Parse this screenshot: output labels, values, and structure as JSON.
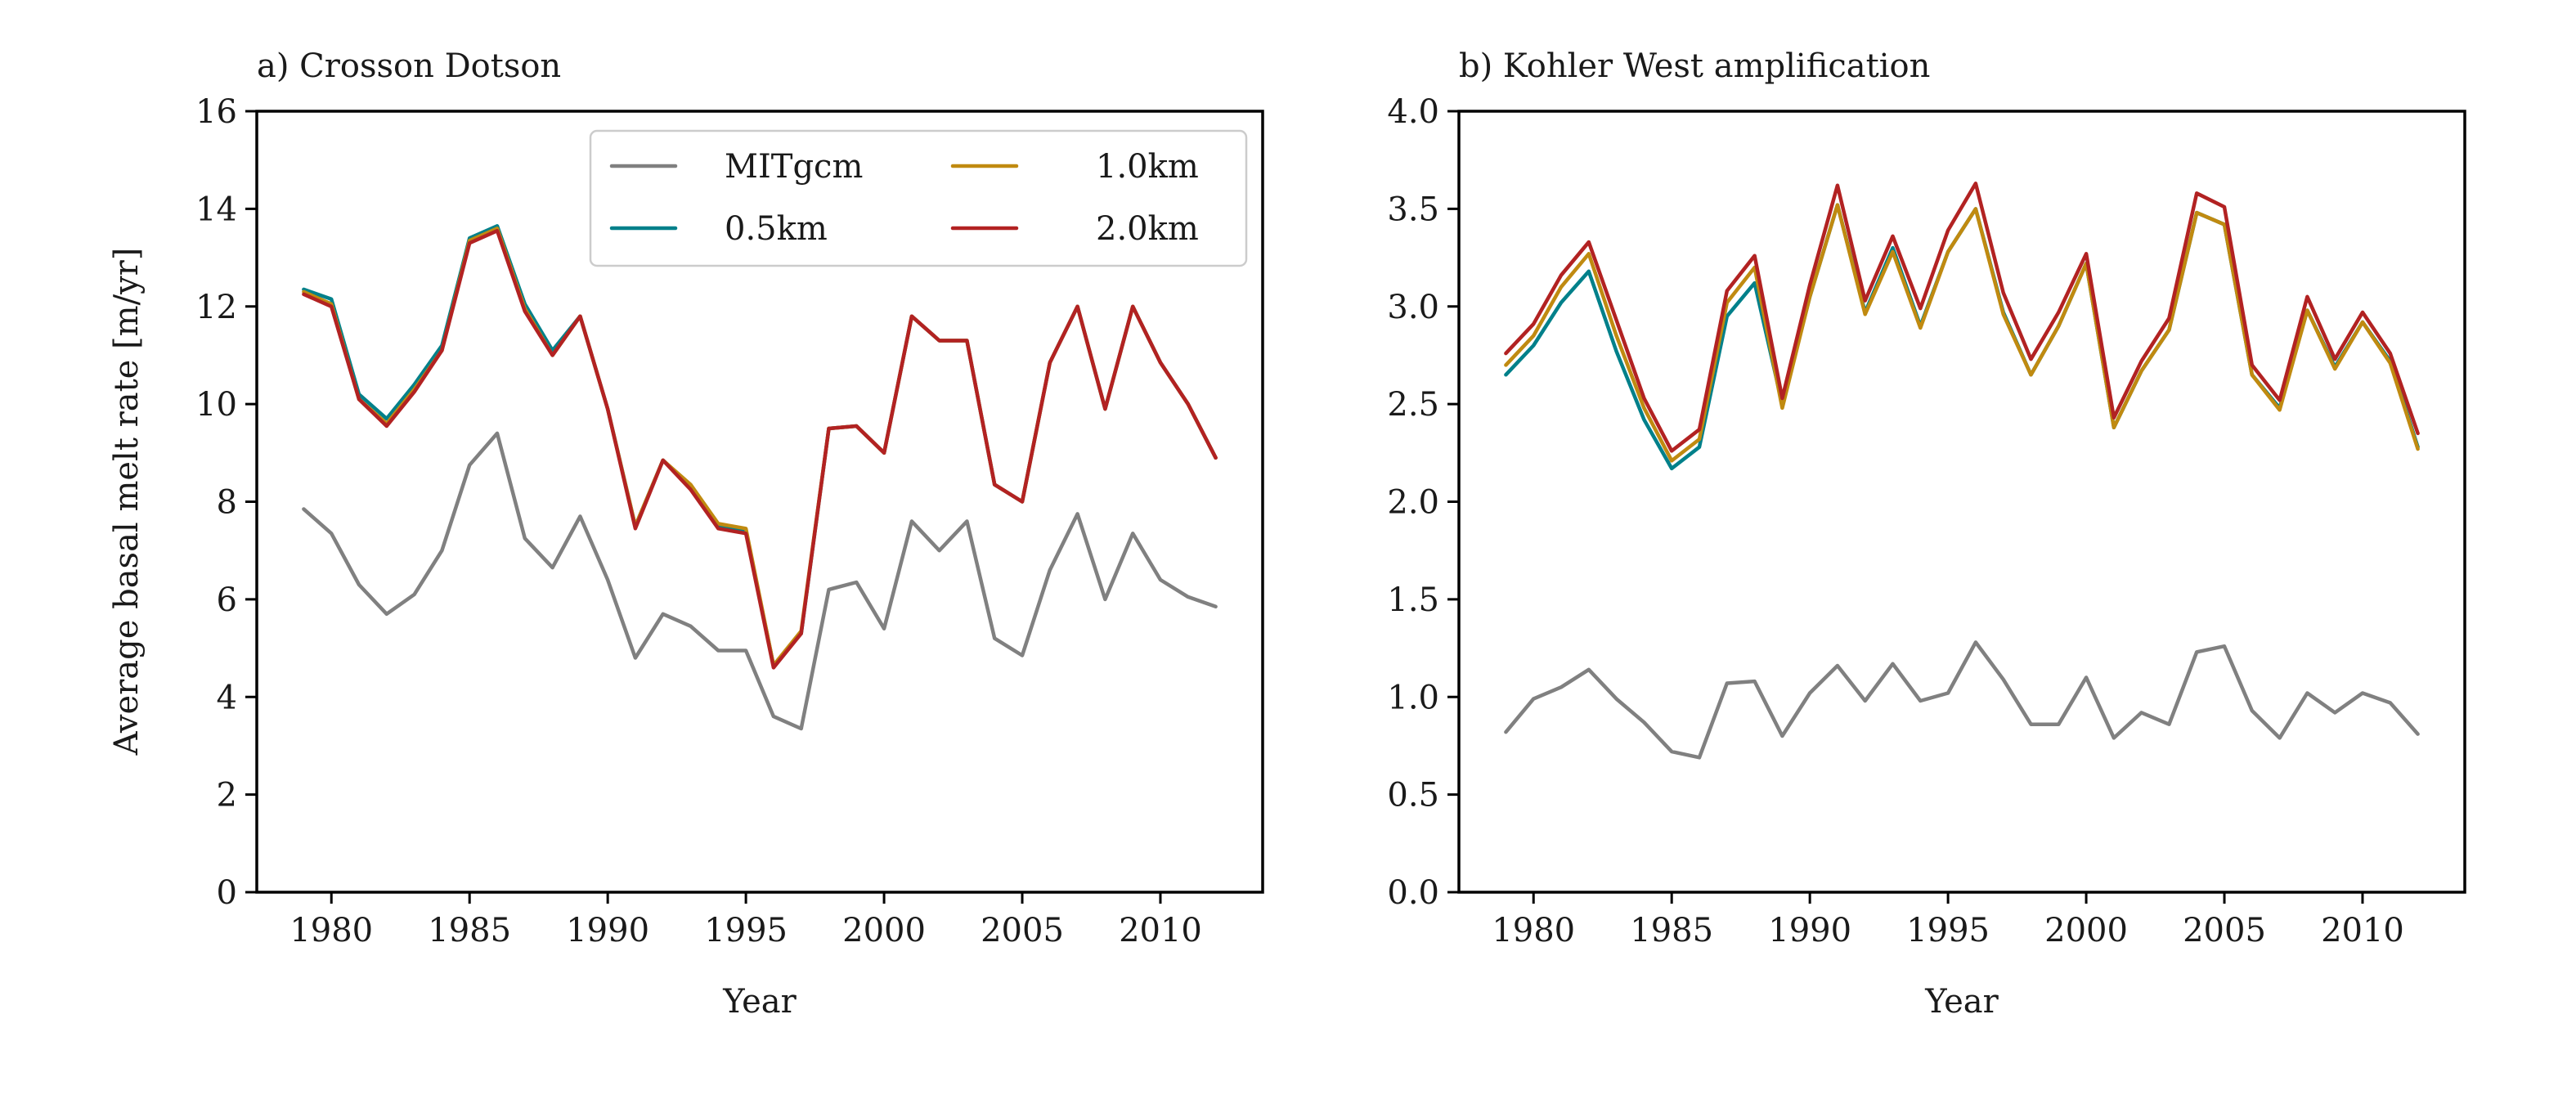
{
  "figure": {
    "ylabel": "Average basal melt rate [m/yr]"
  },
  "legend": {
    "entries": [
      {
        "name": "MITgcm",
        "color": "#808080"
      },
      {
        "name": "0.5km",
        "color": "#00808a"
      },
      {
        "name": "1.0km",
        "color": "#c08a10"
      },
      {
        "name": "2.0km",
        "color": "#b22222"
      }
    ]
  },
  "chart_data": [
    {
      "type": "line",
      "title": "a) Crosson Dotson",
      "xlabel": "Year",
      "ylabel": "Average basal melt rate [m/yr]",
      "xlim": [
        1977.3,
        2013.7
      ],
      "ylim": [
        0,
        16
      ],
      "xticks": [
        1980,
        1985,
        1990,
        1995,
        2000,
        2005,
        2010
      ],
      "yticks": [
        0,
        2,
        4,
        6,
        8,
        10,
        12,
        14,
        16
      ],
      "ytick_labels": [
        "0",
        "2",
        "4",
        "6",
        "8",
        "10",
        "12",
        "14",
        "16"
      ],
      "legend_position": "upper right",
      "x": [
        1979,
        1980,
        1981,
        1982,
        1983,
        1984,
        1985,
        1986,
        1987,
        1988,
        1989,
        1990,
        1991,
        1992,
        1993,
        1994,
        1995,
        1996,
        1997,
        1998,
        1999,
        2000,
        2001,
        2002,
        2003,
        2004,
        2005,
        2006,
        2007,
        2008,
        2009,
        2010,
        2011,
        2012
      ],
      "series": [
        {
          "name": "MITgcm",
          "color": "#808080",
          "values": [
            7.85,
            7.35,
            6.3,
            5.7,
            6.1,
            7.0,
            8.75,
            9.4,
            7.25,
            6.65,
            7.7,
            6.4,
            4.8,
            5.7,
            5.45,
            4.95,
            4.95,
            3.6,
            3.35,
            6.2,
            6.35,
            5.4,
            7.6,
            7.0,
            7.6,
            5.2,
            4.85,
            6.6,
            7.75,
            6.0,
            7.35,
            6.4,
            6.05,
            5.85
          ]
        },
        {
          "name": "0.5km",
          "color": "#00808a",
          "values": [
            12.35,
            12.15,
            10.2,
            9.7,
            10.4,
            11.2,
            13.4,
            13.65,
            12.05,
            11.1,
            11.8,
            9.9,
            7.5,
            8.85,
            8.3,
            7.5,
            7.4,
            4.65,
            5.3,
            9.5,
            9.55,
            9.0,
            11.8,
            11.3,
            11.3,
            8.35,
            8.0,
            10.85,
            12.0,
            9.9,
            12.0,
            10.85,
            10.0,
            8.9
          ]
        },
        {
          "name": "1.0km",
          "color": "#c08a10",
          "values": [
            12.3,
            12.05,
            10.1,
            9.6,
            10.3,
            11.1,
            13.35,
            13.6,
            11.95,
            11.0,
            11.8,
            9.9,
            7.5,
            8.85,
            8.35,
            7.55,
            7.45,
            4.65,
            5.35,
            9.5,
            9.55,
            9.0,
            11.8,
            11.3,
            11.3,
            8.35,
            8.0,
            10.85,
            12.0,
            9.9,
            12.0,
            10.85,
            10.0,
            8.9
          ]
        },
        {
          "name": "2.0km",
          "color": "#b22222",
          "values": [
            12.25,
            12.0,
            10.1,
            9.55,
            10.25,
            11.1,
            13.3,
            13.55,
            11.9,
            11.0,
            11.8,
            9.9,
            7.45,
            8.85,
            8.25,
            7.45,
            7.35,
            4.6,
            5.3,
            9.5,
            9.55,
            9.0,
            11.8,
            11.3,
            11.3,
            8.35,
            8.0,
            10.85,
            12.0,
            9.9,
            12.0,
            10.85,
            10.0,
            8.9
          ]
        }
      ]
    },
    {
      "type": "line",
      "title": "b) Kohler West amplification",
      "xlabel": "Year",
      "ylabel": "",
      "xlim": [
        1977.3,
        2013.7
      ],
      "ylim": [
        0,
        4
      ],
      "xticks": [
        1980,
        1985,
        1990,
        1995,
        2000,
        2005,
        2010
      ],
      "yticks": [
        0,
        0.5,
        1.0,
        1.5,
        2.0,
        2.5,
        3.0,
        3.5,
        4.0
      ],
      "ytick_labels": [
        "0.0",
        "0.5",
        "1.0",
        "1.5",
        "2.0",
        "2.5",
        "3.0",
        "3.5",
        "4.0"
      ],
      "x": [
        1979,
        1980,
        1981,
        1982,
        1983,
        1984,
        1985,
        1986,
        1987,
        1988,
        1989,
        1990,
        1991,
        1992,
        1993,
        1994,
        1995,
        1996,
        1997,
        1998,
        1999,
        2000,
        2001,
        2002,
        2003,
        2004,
        2005,
        2006,
        2007,
        2008,
        2009,
        2010,
        2011,
        2012
      ],
      "series": [
        {
          "name": "MITgcm",
          "color": "#808080",
          "values": [
            0.82,
            0.99,
            1.05,
            1.14,
            0.99,
            0.87,
            0.72,
            0.69,
            1.07,
            1.08,
            0.8,
            1.02,
            1.16,
            0.98,
            1.17,
            0.98,
            1.02,
            1.28,
            1.09,
            0.86,
            0.86,
            1.1,
            0.79,
            0.92,
            0.86,
            1.23,
            1.26,
            0.93,
            0.79,
            1.02,
            0.92,
            1.02,
            0.97,
            0.81
          ]
        },
        {
          "name": "0.5km",
          "color": "#00808a",
          "values": [
            2.65,
            2.8,
            3.02,
            3.18,
            2.77,
            2.42,
            2.17,
            2.28,
            2.95,
            3.12,
            2.5,
            3.05,
            3.52,
            2.97,
            3.3,
            2.9,
            3.28,
            3.5,
            2.97,
            2.65,
            2.9,
            3.22,
            2.38,
            2.67,
            2.88,
            3.48,
            3.42,
            2.65,
            2.48,
            2.98,
            2.69,
            2.92,
            2.72,
            2.28
          ]
        },
        {
          "name": "1.0km",
          "color": "#c08a10",
          "values": [
            2.7,
            2.85,
            3.1,
            3.27,
            2.85,
            2.48,
            2.21,
            2.32,
            3.02,
            3.2,
            2.48,
            3.05,
            3.52,
            2.96,
            3.28,
            2.89,
            3.28,
            3.5,
            2.96,
            2.65,
            2.9,
            3.22,
            2.38,
            2.67,
            2.88,
            3.48,
            3.42,
            2.65,
            2.47,
            2.98,
            2.68,
            2.92,
            2.71,
            2.27
          ]
        },
        {
          "name": "2.0km",
          "color": "#b22222",
          "values": [
            2.76,
            2.91,
            3.16,
            3.33,
            2.93,
            2.53,
            2.26,
            2.37,
            3.08,
            3.26,
            2.53,
            3.11,
            3.62,
            3.03,
            3.36,
            2.99,
            3.39,
            3.63,
            3.07,
            2.73,
            2.97,
            3.27,
            2.43,
            2.72,
            2.94,
            3.58,
            3.51,
            2.7,
            2.52,
            3.05,
            2.73,
            2.97,
            2.76,
            2.35
          ]
        }
      ]
    }
  ]
}
